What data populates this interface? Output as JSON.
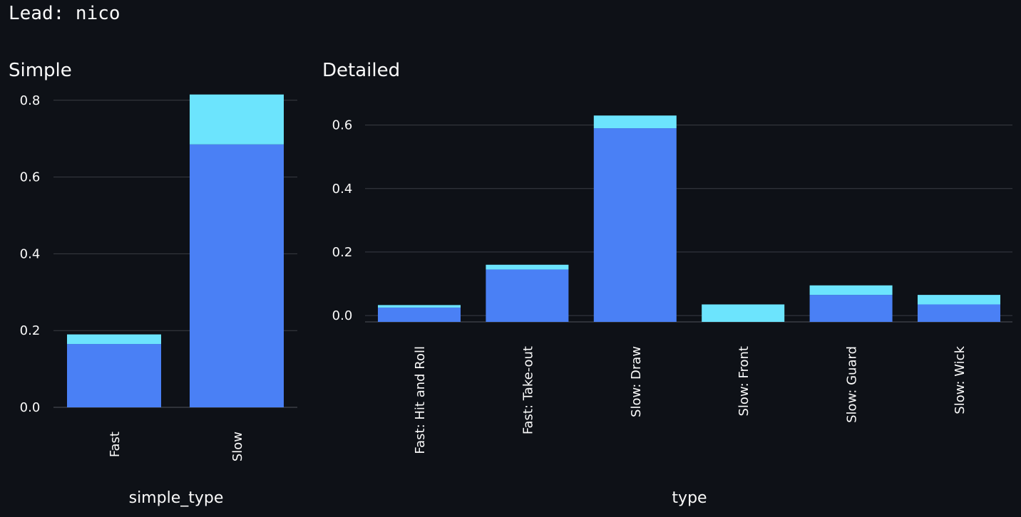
{
  "header": {
    "lead": "Lead: nico"
  },
  "colors": {
    "background": "#0e1117",
    "primary": "#4a80f5",
    "secondary": "#6ce4fd",
    "grid": "#3a3d45"
  },
  "chart_data": [
    {
      "type": "bar",
      "stacked": true,
      "title": "Simple",
      "xlabel": "simple_type",
      "ylabel": "",
      "categories": [
        "Fast",
        "Slow"
      ],
      "series": [
        {
          "values": [
            0.165,
            0.685
          ],
          "color": "#4a80f5"
        },
        {
          "values": [
            0.025,
            0.13
          ],
          "color": "#6ce4fd"
        }
      ],
      "yticks": [
        0.0,
        0.2,
        0.4,
        0.6,
        0.8
      ],
      "tick_labels": [
        "0.0",
        "0.2",
        "0.4",
        "0.6",
        "0.8"
      ],
      "ylim": [
        0,
        0.82
      ],
      "grid": true,
      "legend": "none"
    },
    {
      "type": "bar",
      "stacked": true,
      "title": "Detailed",
      "xlabel": "type",
      "ylabel": "",
      "categories": [
        "Fast: Hit and Roll",
        "Fast: Take-out",
        "Slow: Draw",
        "Slow: Front",
        "Slow: Guard",
        "Slow: Wick"
      ],
      "series": [
        {
          "values": [
            0.025,
            0.145,
            0.59,
            0.0,
            0.065,
            0.035
          ],
          "color": "#4a80f5"
        },
        {
          "values": [
            0.008,
            0.015,
            0.04,
            0.035,
            0.03,
            0.03
          ],
          "color": "#6ce4fd"
        }
      ],
      "yticks": [
        0.0,
        0.2,
        0.4,
        0.6
      ],
      "tick_labels": [
        "0.0",
        "0.2",
        "0.4",
        "0.6"
      ],
      "ylim": [
        -0.02,
        0.635
      ],
      "grid": true,
      "legend": "none"
    }
  ]
}
